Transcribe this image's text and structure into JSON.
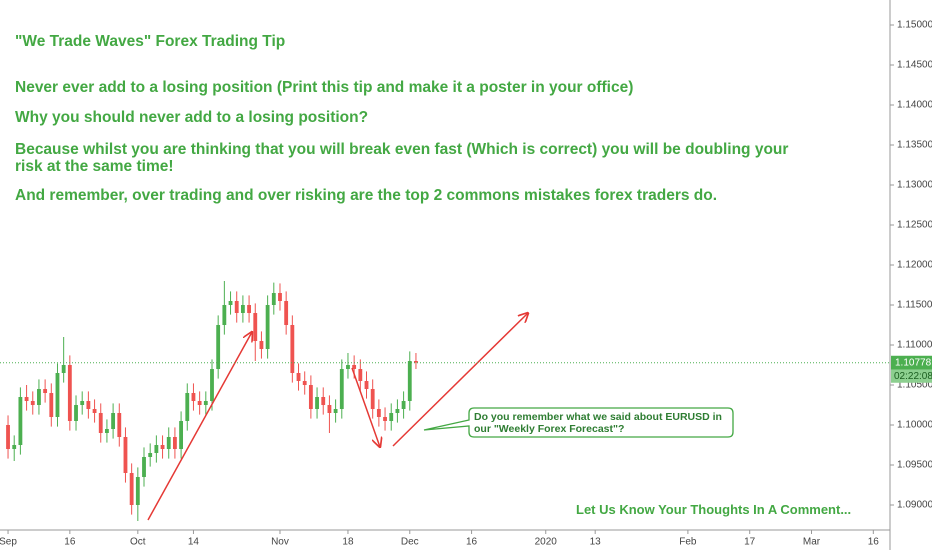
{
  "chart_data": {
    "type": "candlestick",
    "title": "\"We Trade Waves\" Forex Trading Tip",
    "notes": [
      "Never ever add to a losing position (Print this tip and make it a poster in your office)",
      "Why you should never add to a losing position?",
      "Because whilst you are thinking that you will break even fast (Which is correct) you will be doubling your risk at the same time!",
      "And remember, over trading and over risking are the top 2 commons mistakes forex traders do."
    ],
    "callout": "Do you remember what we said about EURUSD in our \"Weekly Forex Forecast\"?",
    "footer": "Let Us Know Your Thoughts In A Comment...",
    "up_color": "#4caf50",
    "down_color": "#ef5350",
    "open": [
      1.1,
      1.097,
      1.0975,
      1.1035,
      1.103,
      1.1025,
      1.1045,
      1.104,
      1.101,
      1.1065,
      1.1075,
      1.1005,
      1.1025,
      1.103,
      1.102,
      1.1015,
      1.099,
      1.0995,
      1.1015,
      1.0985,
      1.094,
      1.09,
      1.0935,
      1.096,
      1.0965,
      1.0975,
      1.097,
      1.0985,
      1.097,
      1.1005,
      1.104,
      1.103,
      1.1025,
      1.103,
      1.107,
      1.1125,
      1.115,
      1.1155,
      1.114,
      1.115,
      1.114,
      1.1105,
      1.1095,
      1.115,
      1.1165,
      1.1155,
      1.1125,
      1.1065,
      1.1055,
      1.105,
      1.102,
      1.1035,
      1.1025,
      1.1015,
      1.102,
      1.107,
      1.1075,
      1.107,
      1.1055,
      1.1045,
      1.102,
      1.101,
      1.1005,
      1.1015,
      1.102,
      1.103,
      1.108
    ],
    "high": [
      1.1012,
      1.0987,
      1.1047,
      1.105,
      1.1042,
      1.1057,
      1.1057,
      1.1052,
      1.1077,
      1.111,
      1.1087,
      1.1037,
      1.1042,
      1.1042,
      1.1032,
      1.1027,
      1.1007,
      1.1027,
      1.1027,
      1.0997,
      1.0952,
      1.0947,
      1.0972,
      1.0977,
      1.0987,
      1.0987,
      1.0997,
      1.0997,
      1.1017,
      1.1052,
      1.1052,
      1.1042,
      1.1042,
      1.1082,
      1.1137,
      1.118,
      1.1167,
      1.1167,
      1.1162,
      1.1162,
      1.1152,
      1.1117,
      1.1162,
      1.1178,
      1.1177,
      1.1167,
      1.1137,
      1.1077,
      1.1067,
      1.1062,
      1.1047,
      1.1047,
      1.1037,
      1.1032,
      1.1082,
      1.109,
      1.1087,
      1.1082,
      1.1067,
      1.1057,
      1.1032,
      1.1022,
      1.1027,
      1.1032,
      1.1042,
      1.1092,
      1.109
    ],
    "low": [
      1.0958,
      1.0955,
      1.0963,
      1.1018,
      1.1013,
      1.1013,
      1.1028,
      1.0998,
      1.0998,
      1.1053,
      1.0993,
      1.0993,
      1.1013,
      1.1008,
      1.1003,
      1.0978,
      1.0978,
      1.0983,
      1.0973,
      1.0928,
      1.0888,
      1.088,
      1.0923,
      1.0948,
      1.0953,
      1.0958,
      1.0958,
      1.0958,
      1.0958,
      1.0993,
      1.1018,
      1.1013,
      1.1013,
      1.1018,
      1.1058,
      1.1113,
      1.1138,
      1.1128,
      1.1128,
      1.1128,
      1.108,
      1.1083,
      1.1083,
      1.1138,
      1.1143,
      1.1113,
      1.1053,
      1.1043,
      1.1038,
      1.1008,
      1.1008,
      1.1013,
      1.099,
      1.1003,
      1.1008,
      1.1058,
      1.1058,
      1.1043,
      1.1033,
      1.1008,
      1.0998,
      1.0993,
      1.0993,
      1.1003,
      1.1008,
      1.1018,
      1.107
    ],
    "close": [
      1.097,
      1.0975,
      1.1035,
      1.103,
      1.1025,
      1.1045,
      1.104,
      1.101,
      1.1065,
      1.1075,
      1.1005,
      1.1025,
      1.103,
      1.102,
      1.1015,
      1.099,
      1.0995,
      1.1015,
      1.0985,
      1.094,
      1.09,
      1.0935,
      1.096,
      1.0965,
      1.0975,
      1.097,
      1.0985,
      1.097,
      1.1005,
      1.104,
      1.103,
      1.1025,
      1.103,
      1.107,
      1.1125,
      1.115,
      1.1155,
      1.114,
      1.115,
      1.114,
      1.1105,
      1.1095,
      1.115,
      1.1165,
      1.1155,
      1.1125,
      1.1065,
      1.1055,
      1.105,
      1.102,
      1.1035,
      1.1025,
      1.1015,
      1.102,
      1.107,
      1.1075,
      1.107,
      1.1055,
      1.1045,
      1.102,
      1.101,
      1.1005,
      1.1015,
      1.102,
      1.103,
      1.108,
      1.1078
    ],
    "last_price": 1.10778,
    "countdown": "02:22:08",
    "xlim": [
      -1.3,
      142.7
    ],
    "xticks": [
      {
        "value": 0,
        "label": "Sep"
      },
      {
        "value": 10,
        "label": "16"
      },
      {
        "value": 21,
        "label": "Oct"
      },
      {
        "value": 30,
        "label": "14"
      },
      {
        "value": 44,
        "label": "Nov"
      },
      {
        "value": 55,
        "label": "18"
      },
      {
        "value": 65,
        "label": "Dec"
      },
      {
        "value": 75,
        "label": "16"
      },
      {
        "value": 87,
        "label": "2020"
      },
      {
        "value": 95,
        "label": "13"
      },
      {
        "value": 110,
        "label": "Feb"
      },
      {
        "value": 120,
        "label": "17"
      },
      {
        "value": 130,
        "label": "Mar"
      },
      {
        "value": 140,
        "label": "16"
      }
    ],
    "ylim": [
      1.086875,
      1.153125
    ],
    "yticks": [
      {
        "value": 1.15,
        "label": "1.15000"
      },
      {
        "value": 1.145,
        "label": "1.14500"
      },
      {
        "value": 1.14,
        "label": "1.14000"
      },
      {
        "value": 1.135,
        "label": "1.13500"
      },
      {
        "value": 1.13,
        "label": "1.13000"
      },
      {
        "value": 1.125,
        "label": "1.12500"
      },
      {
        "value": 1.12,
        "label": "1.12000"
      },
      {
        "value": 1.115,
        "label": "1.11500"
      },
      {
        "value": 1.11,
        "label": "1.11000"
      },
      {
        "value": 1.105,
        "label": "1.10500"
      },
      {
        "value": 1.1,
        "label": "1.10000"
      },
      {
        "value": 1.095,
        "label": "1.09500"
      },
      {
        "value": 1.09,
        "label": "1.09000"
      }
    ]
  }
}
